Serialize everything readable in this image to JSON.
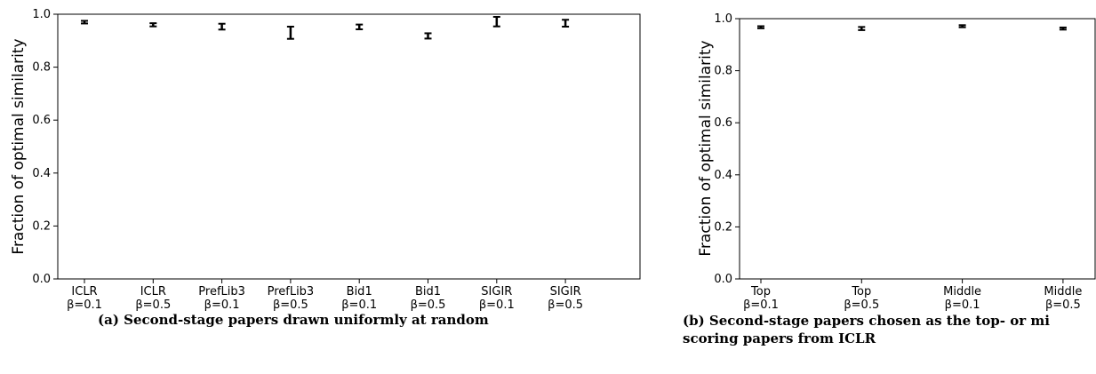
{
  "charts": [
    {
      "ylabel": "Fraction of optimal similarity",
      "ytick_labels": [
        "0.0",
        "0.2",
        "0.4",
        "0.6",
        "0.8",
        "1.0"
      ],
      "categories": [
        {
          "line1": "ICLR",
          "line2": "β=0.1"
        },
        {
          "line1": "ICLR",
          "line2": "β=0.5"
        },
        {
          "line1": "PrefLib3",
          "line2": "β=0.1"
        },
        {
          "line1": "PrefLib3",
          "line2": "β=0.5"
        },
        {
          "line1": "Bid1",
          "line2": "β=0.1"
        },
        {
          "line1": "Bid1",
          "line2": "β=0.5"
        },
        {
          "line1": "SIGIR",
          "line2": "β=0.1"
        },
        {
          "line1": "SIGIR",
          "line2": "β=0.5"
        }
      ]
    },
    {
      "ylabel": "Fraction of optimal similarity",
      "ytick_labels": [
        "0.0",
        "0.2",
        "0.4",
        "0.6",
        "0.8",
        "1.0"
      ],
      "categories": [
        {
          "line1": "Top",
          "line2": "β=0.1"
        },
        {
          "line1": "Top",
          "line2": "β=0.5"
        },
        {
          "line1": "Middle",
          "line2": "β=0.1"
        },
        {
          "line1": "Middle",
          "line2": "β=0.5"
        }
      ]
    }
  ],
  "captions": {
    "a": "(a) Second-stage papers drawn uniformly at random",
    "b_line1": "(b) Second-stage papers chosen as the top- or mi",
    "b_line2": "scoring papers from ICLR"
  },
  "chart_data": [
    {
      "type": "errorbar",
      "categories": [
        "ICLR β=0.1",
        "ICLR β=0.5",
        "PrefLib3 β=0.1",
        "PrefLib3 β=0.5",
        "Bid1 β=0.1",
        "Bid1 β=0.5",
        "SIGIR β=0.1",
        "SIGIR β=0.5"
      ],
      "values": [
        0.97,
        0.96,
        0.953,
        0.93,
        0.952,
        0.918,
        0.972,
        0.966
      ],
      "errors": [
        0.005,
        0.006,
        0.011,
        0.023,
        0.009,
        0.01,
        0.018,
        0.013
      ],
      "ylabel": "Fraction of optimal similarity",
      "ylim": [
        0,
        1.0
      ],
      "grid": false
    },
    {
      "type": "errorbar",
      "categories": [
        "Top β=0.1",
        "Top β=0.5",
        "Middle β=0.1",
        "Middle β=0.5"
      ],
      "values": [
        0.967,
        0.962,
        0.971,
        0.962
      ],
      "errors": [
        0.004,
        0.006,
        0.004,
        0.004
      ],
      "ylabel": "Fraction of optimal similarity",
      "ylim": [
        0,
        1.0
      ],
      "grid": false
    }
  ]
}
